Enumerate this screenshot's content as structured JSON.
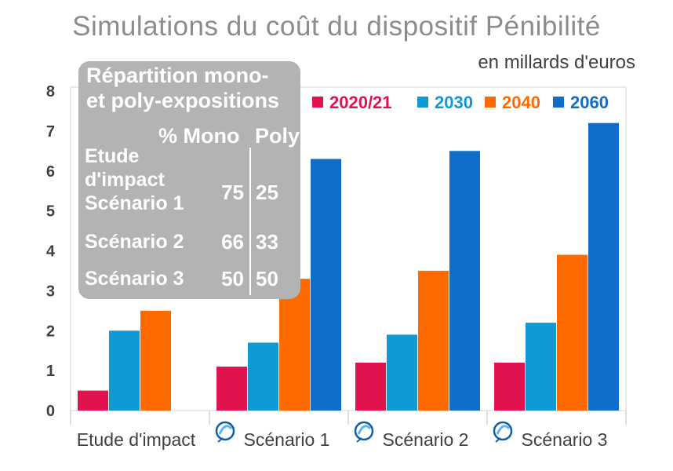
{
  "title": "Simulations du coût du dispositif Pénibilité",
  "subtitle": "en millards d'euros",
  "chart_data": {
    "type": "bar",
    "categories": [
      "Etude d'impact",
      "Scénario 1",
      "Scénario 2",
      "Scénario 3"
    ],
    "series": [
      {
        "name": "2020/21",
        "color": "#e0134f",
        "values": [
          0.5,
          1.1,
          1.2,
          1.2
        ]
      },
      {
        "name": "2030",
        "color": "#0f9ad6",
        "values": [
          2.0,
          1.7,
          1.9,
          2.2
        ]
      },
      {
        "name": "2040",
        "color": "#ff6a00",
        "values": [
          2.5,
          3.3,
          3.5,
          3.9
        ]
      },
      {
        "name": "2060",
        "color": "#0f6ec9",
        "values": [
          null,
          6.3,
          6.5,
          7.2
        ]
      }
    ],
    "ylim": [
      0,
      8
    ],
    "yticks": [
      0,
      1,
      2,
      3,
      4,
      5,
      6,
      7,
      8
    ],
    "xlabel": "",
    "ylabel": "",
    "grid": false,
    "legend": "top-right"
  },
  "inset": {
    "title": "Répartition mono-\net poly-expositions",
    "header_pct": "% Mono",
    "header_poly": "Poly",
    "rows": [
      {
        "label": "Etude\nd'impact\nScénario 1",
        "mono": "75",
        "poly": "25"
      },
      {
        "label": "Scénario 2",
        "mono": "66",
        "poly": "33"
      },
      {
        "label": "Scénario 3",
        "mono": "50",
        "poly": "50"
      }
    ]
  }
}
